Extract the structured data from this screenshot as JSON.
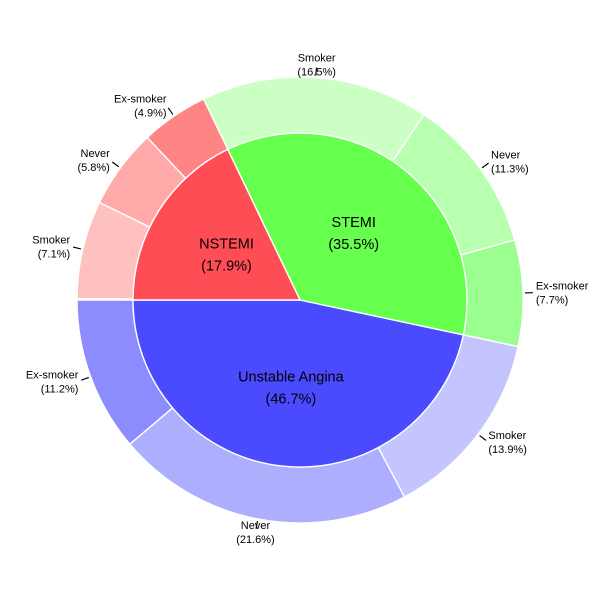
{
  "chart_data": {
    "type": "sunburst",
    "title": "",
    "rings": {
      "inner": [
        {
          "name": "Unstable Angina",
          "value": 46.7,
          "label": "Unstable Angina",
          "percent_label": "(46.7%)",
          "color": "#4a4aff"
        },
        {
          "name": "STEMI",
          "value": 35.5,
          "label": "STEMI",
          "percent_label": "(35.5%)",
          "color": "#66ff4e"
        },
        {
          "name": "NSTEMI",
          "value": 17.9,
          "label": "NSTEMI",
          "percent_label": "(17.9%)",
          "color": "#ff4d55"
        }
      ],
      "outer": [
        {
          "parent": "Unstable Angina",
          "name": "Ex-smoker",
          "value": 11.2,
          "label": "Ex-smoker",
          "percent_label": "(11.2%)",
          "color": "#8c8cff"
        },
        {
          "parent": "Unstable Angina",
          "name": "Never",
          "value": 21.6,
          "label": "Never",
          "percent_label": "(21.6%)",
          "color": "#aeaeff"
        },
        {
          "parent": "Unstable Angina",
          "name": "Smoker",
          "value": 13.9,
          "label": "Smoker",
          "percent_label": "(13.9%)",
          "color": "#c4c4ff"
        },
        {
          "parent": "NSTEMI",
          "name": "Ex-smoker",
          "value": 4.9,
          "label": "Ex-smoker",
          "percent_label": "(4.9%)",
          "color": "#ff8484"
        },
        {
          "parent": "NSTEMI",
          "name": "Never",
          "value": 5.8,
          "label": "Never",
          "percent_label": "(5.8%)",
          "color": "#ffa9a9"
        },
        {
          "parent": "NSTEMI",
          "name": "Smoker",
          "value": 7.1,
          "label": "Smoker",
          "percent_label": "(7.1%)",
          "color": "#ffc0c0"
        },
        {
          "parent": "STEMI",
          "name": "Ex-smoker",
          "value": 7.7,
          "label": "Ex-smoker",
          "percent_label": "(7.7%)",
          "color": "#9aff8e"
        },
        {
          "parent": "STEMI",
          "name": "Never",
          "value": 11.3,
          "label": "Never",
          "percent_label": "(11.3%)",
          "color": "#b9ffb0"
        },
        {
          "parent": "STEMI",
          "name": "Smoker",
          "value": 16.5,
          "label": "Smoker",
          "percent_label": "(16.5%)",
          "color": "#ccffc4"
        }
      ]
    }
  }
}
